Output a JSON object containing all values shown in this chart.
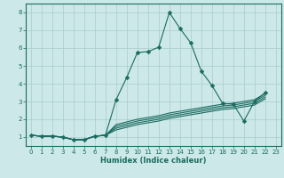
{
  "title": "",
  "xlabel": "Humidex (Indice chaleur)",
  "xlim": [
    -0.5,
    23.5
  ],
  "ylim": [
    0.5,
    8.5
  ],
  "xticks": [
    0,
    1,
    2,
    3,
    4,
    5,
    6,
    7,
    8,
    9,
    10,
    11,
    12,
    13,
    14,
    15,
    16,
    17,
    18,
    19,
    20,
    21,
    22,
    23
  ],
  "yticks": [
    1,
    2,
    3,
    4,
    5,
    6,
    7,
    8
  ],
  "bg_color": "#cce8e8",
  "line_color": "#1a6b60",
  "grid_color": "#aacccc",
  "lines": [
    [
      1.1,
      1.05,
      1.05,
      1.0,
      0.85,
      0.85,
      1.05,
      1.1,
      3.1,
      4.35,
      5.75,
      5.8,
      6.05,
      8.0,
      7.1,
      6.3,
      4.7,
      3.9,
      2.9,
      2.85,
      1.9,
      3.0,
      3.5
    ],
    [
      1.1,
      1.05,
      1.05,
      1.0,
      0.85,
      0.85,
      1.05,
      1.1,
      1.7,
      1.85,
      2.0,
      2.1,
      2.2,
      2.35,
      2.45,
      2.55,
      2.65,
      2.75,
      2.85,
      2.9,
      3.0,
      3.1,
      3.45
    ],
    [
      1.1,
      1.05,
      1.05,
      1.0,
      0.85,
      0.85,
      1.05,
      1.1,
      1.6,
      1.75,
      1.9,
      2.0,
      2.1,
      2.25,
      2.35,
      2.45,
      2.55,
      2.65,
      2.75,
      2.8,
      2.9,
      3.0,
      3.35
    ],
    [
      1.1,
      1.05,
      1.05,
      1.0,
      0.85,
      0.85,
      1.05,
      1.1,
      1.5,
      1.65,
      1.8,
      1.9,
      2.0,
      2.15,
      2.25,
      2.35,
      2.45,
      2.55,
      2.65,
      2.7,
      2.8,
      2.9,
      3.25
    ],
    [
      1.1,
      1.05,
      1.05,
      1.0,
      0.85,
      0.85,
      1.05,
      1.1,
      1.4,
      1.55,
      1.7,
      1.8,
      1.9,
      2.05,
      2.15,
      2.25,
      2.35,
      2.45,
      2.55,
      2.6,
      2.7,
      2.8,
      3.15
    ]
  ],
  "marker_line_idx": 0,
  "xlabel_fontsize": 6,
  "tick_fontsize": 5,
  "linewidth": 0.8,
  "markersize": 2.5
}
